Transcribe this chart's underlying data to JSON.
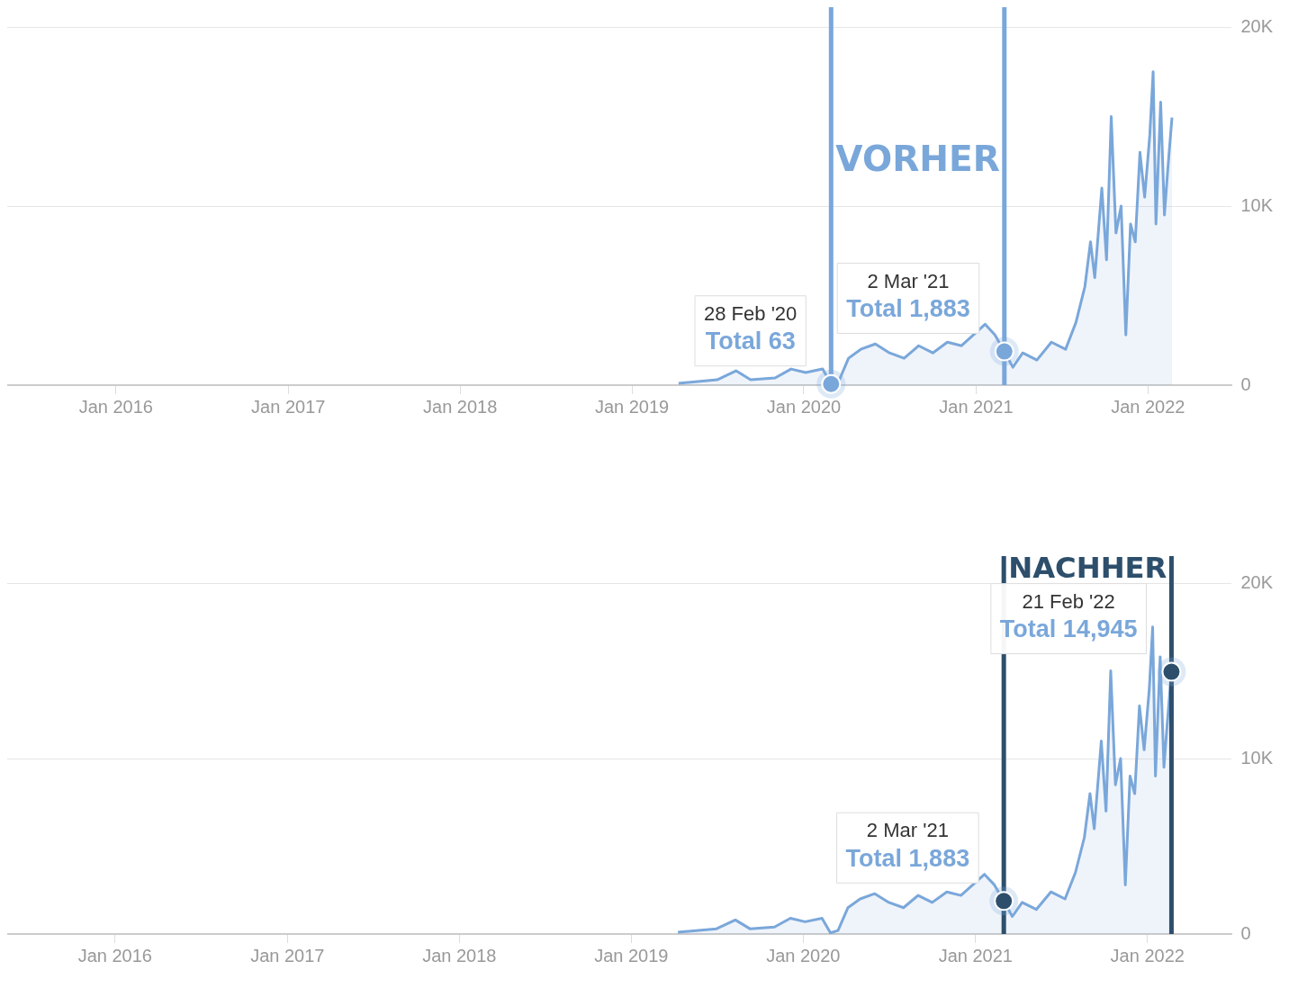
{
  "chart_data": [
    {
      "type": "area",
      "color": "#7aa7da",
      "x": [
        "2019-04-10",
        "2019-07-01",
        "2019-08-10",
        "2019-09-10",
        "2019-11-01",
        "2019-12-05",
        "2020-01-05",
        "2020-02-10",
        "2020-02-28",
        "2020-03-15",
        "2020-04-05",
        "2020-05-01",
        "2020-06-01",
        "2020-07-01",
        "2020-08-01",
        "2020-09-01",
        "2020-10-01",
        "2020-11-01",
        "2020-12-01",
        "2021-01-20",
        "2021-02-10",
        "2021-03-02",
        "2021-03-20",
        "2021-04-10",
        "2021-05-10",
        "2021-06-10",
        "2021-07-10",
        "2021-08-01",
        "2021-08-20",
        "2021-09-01",
        "2021-09-10",
        "2021-09-25",
        "2021-10-05",
        "2021-10-15",
        "2021-10-25",
        "2021-11-05",
        "2021-11-15",
        "2021-11-25",
        "2021-12-05",
        "2021-12-15",
        "2021-12-25",
        "2022-01-05",
        "2022-01-12",
        "2022-01-18",
        "2022-01-28",
        "2022-02-05",
        "2022-02-12",
        "2022-02-21"
      ],
      "values": [
        100,
        300,
        800,
        300,
        400,
        900,
        700,
        900,
        63,
        200,
        1500,
        2000,
        2300,
        1800,
        1500,
        2200,
        1800,
        2400,
        2200,
        3400,
        2800,
        1883,
        1000,
        1800,
        1400,
        2400,
        2000,
        3500,
        5500,
        8000,
        6000,
        11000,
        7000,
        15000,
        8500,
        10000,
        2800,
        9000,
        8000,
        13000,
        10500,
        14000,
        17500,
        9000,
        15800,
        9500,
        12000,
        14945
      ],
      "xlim": [
        "2015-05-15",
        "2022-06-28"
      ],
      "xticks": [
        {
          "value": "2016-01-01",
          "label": "Jan 2016"
        },
        {
          "value": "2017-01-01",
          "label": "Jan 2017"
        },
        {
          "value": "2018-01-01",
          "label": "Jan 2018"
        },
        {
          "value": "2019-01-01",
          "label": "Jan 2019"
        },
        {
          "value": "2020-01-01",
          "label": "Jan 2020"
        },
        {
          "value": "2021-01-01",
          "label": "Jan 2021"
        },
        {
          "value": "2022-01-01",
          "label": "Jan 2022"
        }
      ],
      "ylim": [
        0,
        20000
      ],
      "yticks": [
        {
          "value": 0,
          "label": "0"
        },
        {
          "value": 10000,
          "label": "10K"
        },
        {
          "value": 20000,
          "label": "20K"
        }
      ],
      "grid": "y",
      "ref_lines": [
        {
          "axis": "x",
          "value": "2020-02-28",
          "label": "VORHER",
          "color": "#7aa7da"
        },
        {
          "axis": "x",
          "value": "2021-03-02",
          "label": null,
          "color": "#7aa7da"
        }
      ],
      "annotations": [
        {
          "text": "28 Feb '20\nTotal 63",
          "x": "2020-02-28",
          "y": 63
        },
        {
          "text": "2 Mar '21\nTotal 1,883",
          "x": "2021-03-02",
          "y": 1883
        }
      ]
    },
    {
      "type": "area",
      "color": "#7aa7da",
      "x": [
        "2019-04-10",
        "2019-07-01",
        "2019-08-10",
        "2019-09-10",
        "2019-11-01",
        "2019-12-05",
        "2020-01-05",
        "2020-02-10",
        "2020-02-28",
        "2020-03-15",
        "2020-04-05",
        "2020-05-01",
        "2020-06-01",
        "2020-07-01",
        "2020-08-01",
        "2020-09-01",
        "2020-10-01",
        "2020-11-01",
        "2020-12-01",
        "2021-01-20",
        "2021-02-10",
        "2021-03-02",
        "2021-03-20",
        "2021-04-10",
        "2021-05-10",
        "2021-06-10",
        "2021-07-10",
        "2021-08-01",
        "2021-08-20",
        "2021-09-01",
        "2021-09-10",
        "2021-09-25",
        "2021-10-05",
        "2021-10-15",
        "2021-10-25",
        "2021-11-05",
        "2021-11-15",
        "2021-11-25",
        "2021-12-05",
        "2021-12-15",
        "2021-12-25",
        "2022-01-05",
        "2022-01-12",
        "2022-01-18",
        "2022-01-28",
        "2022-02-05",
        "2022-02-12",
        "2022-02-21"
      ],
      "values": [
        100,
        300,
        800,
        300,
        400,
        900,
        700,
        900,
        63,
        200,
        1500,
        2000,
        2300,
        1800,
        1500,
        2200,
        1800,
        2400,
        2200,
        3400,
        2800,
        1883,
        1000,
        1800,
        1400,
        2400,
        2000,
        3500,
        5500,
        8000,
        6000,
        11000,
        7000,
        15000,
        8500,
        10000,
        2800,
        9000,
        8000,
        13000,
        10500,
        14000,
        17500,
        9000,
        15800,
        9500,
        12000,
        14945
      ],
      "xlim": [
        "2015-05-17",
        "2022-06-29"
      ],
      "xticks": [
        {
          "value": "2016-01-01",
          "label": "Jan 2016"
        },
        {
          "value": "2017-01-01",
          "label": "Jan 2017"
        },
        {
          "value": "2018-01-01",
          "label": "Jan 2018"
        },
        {
          "value": "2019-01-01",
          "label": "Jan 2019"
        },
        {
          "value": "2020-01-01",
          "label": "Jan 2020"
        },
        {
          "value": "2021-01-01",
          "label": "Jan 2021"
        },
        {
          "value": "2022-01-01",
          "label": "Jan 2022"
        }
      ],
      "ylim": [
        0,
        20000
      ],
      "yticks": [
        {
          "value": 0,
          "label": "0"
        },
        {
          "value": 10000,
          "label": "10K"
        },
        {
          "value": 20000,
          "label": "20K"
        }
      ],
      "grid": "y",
      "ref_lines": [
        {
          "axis": "x",
          "value": "2021-03-02",
          "label": "NACHHER",
          "color": "#2d4f6c"
        },
        {
          "axis": "x",
          "value": "2022-02-21",
          "label": null,
          "color": "#2d4f6c"
        }
      ],
      "annotations": [
        {
          "text": "2 Mar '21\nTotal 1,883",
          "x": "2021-03-02",
          "y": 1883
        },
        {
          "text": "21 Feb '22\nTotal 14,945",
          "x": "2022-02-21",
          "y": 14945
        }
      ]
    }
  ]
}
